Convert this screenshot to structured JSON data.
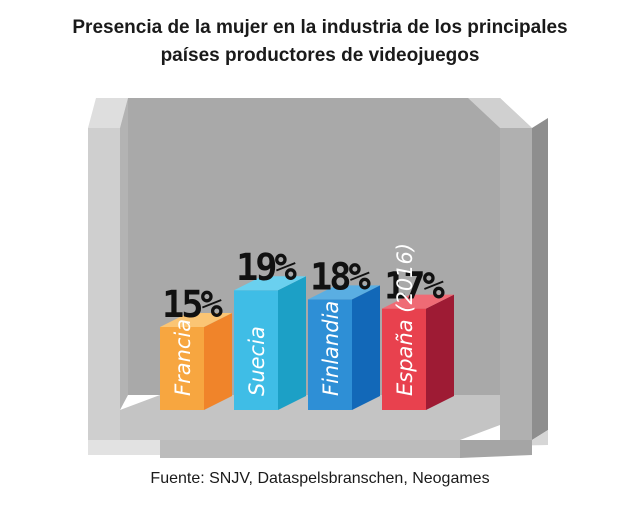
{
  "chart_data": {
    "type": "bar",
    "title_lines": [
      "Presencia de la mujer en la industria de los principales",
      "países productores de videojuegos"
    ],
    "categories": [
      "Francia",
      "Suecia",
      "Finlandia",
      "España (2016)"
    ],
    "values": [
      15,
      19,
      18,
      17
    ],
    "value_labels": [
      "15%",
      "19%",
      "18%",
      "17%"
    ],
    "colors": [
      "#f7a640",
      "#3fbde6",
      "#2e8fd6",
      "#e8414e"
    ],
    "side_colors": [
      "#f0842a",
      "#1ca0c6",
      "#1268b8",
      "#9e1b34"
    ],
    "top_colors": [
      "#fbc574",
      "#6ad0ef",
      "#5aaee2",
      "#ef6b75"
    ],
    "unit": "%",
    "source": "Fuente: SNJV, Dataspelsbranschen, Neogames"
  }
}
